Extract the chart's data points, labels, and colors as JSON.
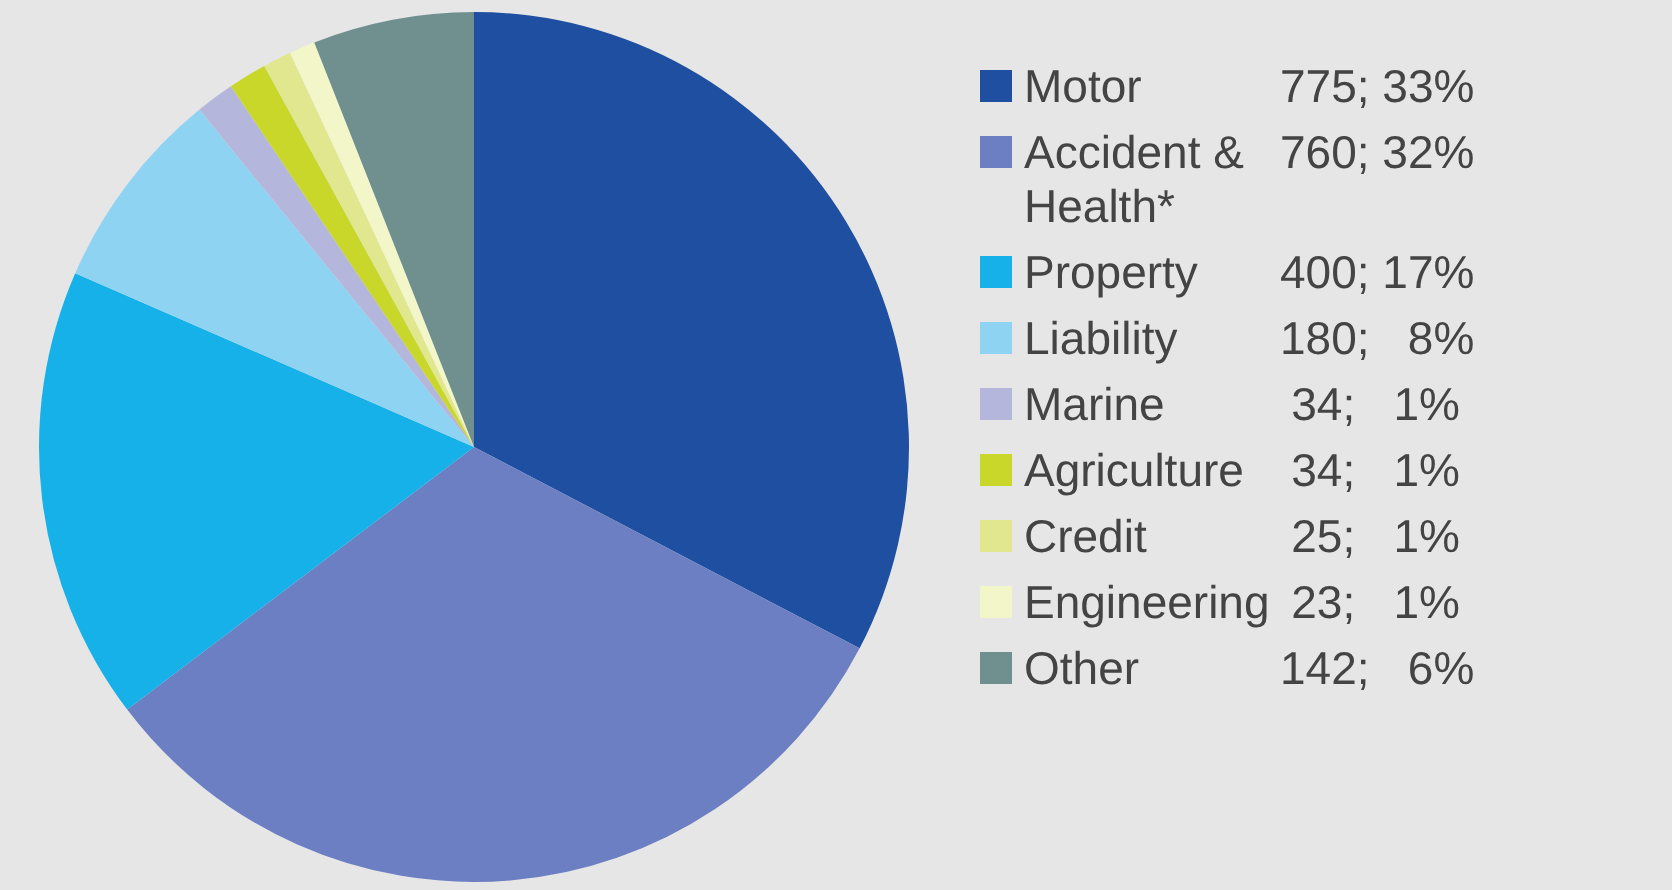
{
  "chart_data": {
    "type": "pie",
    "categories": [
      "Motor",
      "Accident & Health*",
      "Property",
      "Liability",
      "Marine",
      "Agriculture",
      "Credit",
      "Engineering",
      "Other"
    ],
    "values": [
      775,
      760,
      400,
      180,
      34,
      34,
      25,
      23,
      142
    ],
    "value_labels": [
      "775; 33%",
      "760; 32%",
      "400; 17%",
      "180;   8%",
      "34;   1%",
      "34;   1%",
      "25;   1%",
      "23;   1%",
      "142;   6%"
    ],
    "colors": [
      "#1f4fa0",
      "#6b7fc2",
      "#16b1e8",
      "#8fd3f2",
      "#b4b6dc",
      "#c9d72a",
      "#e0e78e",
      "#f3f6c8",
      "#6f908e"
    ],
    "legend": "right"
  }
}
